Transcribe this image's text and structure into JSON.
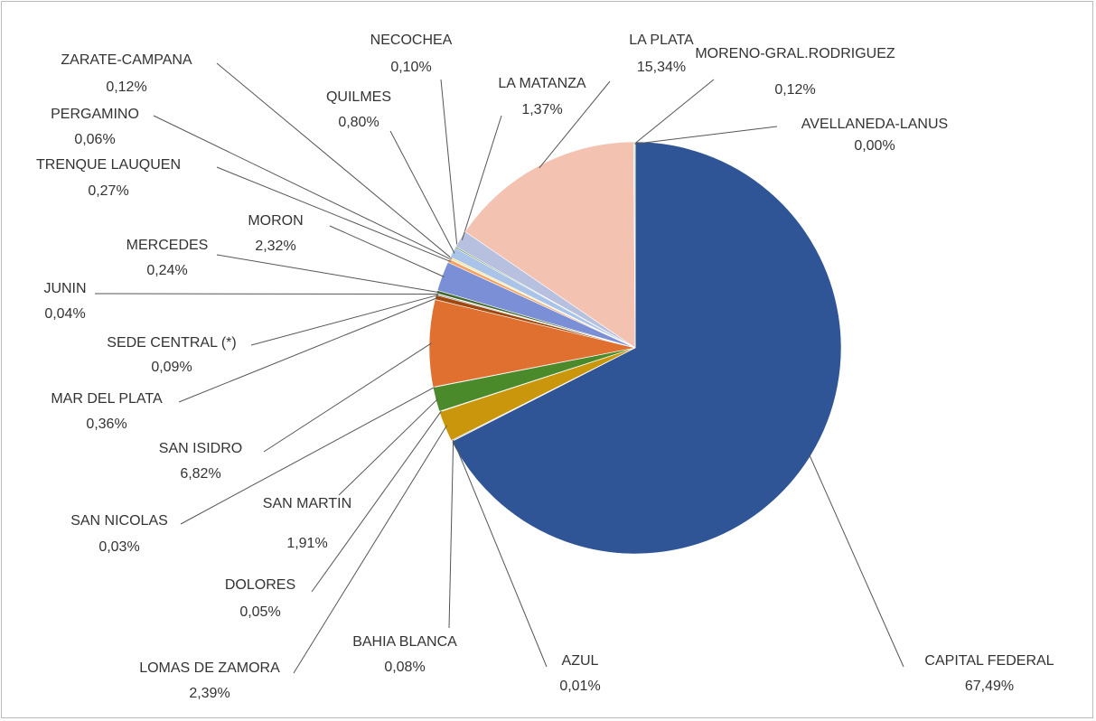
{
  "chart_data": {
    "type": "pie",
    "categories": [
      "CAPITAL FEDERAL",
      "AZUL",
      "BAHIA BLANCA",
      "LOMAS DE ZAMORA",
      "DOLORES",
      "SAN MARTIN",
      "SAN NICOLAS",
      "SAN ISIDRO",
      "MAR DEL PLATA",
      "SEDE CENTRAL (*)",
      "JUNIN",
      "MERCEDES",
      "MORON",
      "TRENQUE LAUQUEN",
      "PERGAMINO",
      "ZARATE-CAMPANA",
      "QUILMES",
      "NECOCHEA",
      "LA MATANZA",
      "LA PLATA",
      "MORENO-GRAL.RODRIGUEZ",
      "AVELLANEDA-LANUS"
    ],
    "values": [
      67.49,
      0.01,
      0.08,
      2.39,
      0.05,
      1.91,
      0.03,
      6.82,
      0.36,
      0.09,
      0.04,
      0.24,
      2.32,
      0.27,
      0.06,
      0.12,
      0.8,
      0.1,
      1.37,
      15.34,
      0.12,
      0.0
    ],
    "value_labels": [
      "67,49%",
      "0,01%",
      "0,08%",
      "2,39%",
      "0,05%",
      "1,91%",
      "0,03%",
      "6,82%",
      "0,36%",
      "0,09%",
      "0,04%",
      "0,24%",
      "2,32%",
      "0,27%",
      "0,06%",
      "0,12%",
      "0,80%",
      "0,10%",
      "1,37%",
      "15,34%",
      "0,12%",
      "0,00%"
    ],
    "colors": [
      "#2f5597",
      "#5b9bd5",
      "#a5a5a5",
      "#c9960c",
      "#7f6000",
      "#4a8a2a",
      "#264478",
      "#e07030",
      "#9e480e",
      "#636363",
      "#997300",
      "#43682b",
      "#7b8fd6",
      "#f4a261",
      "#bfbfbf",
      "#ffd966",
      "#a9c4e8",
      "#548235",
      "#b8c0e0",
      "#f4c2b0",
      "#c5e0b4",
      "#8faadc"
    ]
  }
}
